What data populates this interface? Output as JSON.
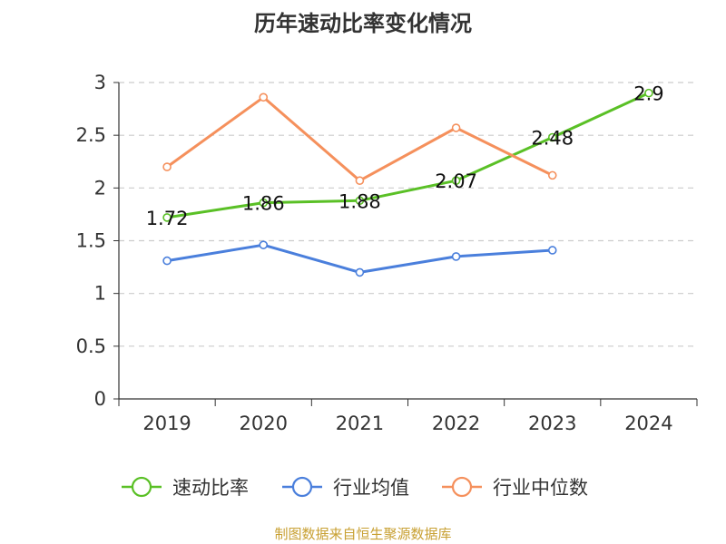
{
  "chart_data": {
    "type": "line",
    "title": "历年速动比率变化情况",
    "categories": [
      "2019",
      "2020",
      "2021",
      "2022",
      "2023",
      "2024"
    ],
    "ylim": [
      0,
      3
    ],
    "yticks": [
      "0",
      "0.5",
      "1",
      "1.5",
      "2",
      "2.5",
      "3"
    ],
    "grid": "horizontal-dashed",
    "legend_position": "bottom",
    "series": [
      {
        "name": "速动比率",
        "color": "#5ac026",
        "values": [
          1.72,
          1.86,
          1.88,
          2.07,
          2.48,
          2.9
        ],
        "labels": [
          "1.72",
          "1.86",
          "1.88",
          "2.07",
          "2.48",
          "2.9"
        ]
      },
      {
        "name": "行业均值",
        "color": "#4a7fdc",
        "values": [
          1.31,
          1.46,
          1.2,
          1.35,
          1.41,
          null
        ]
      },
      {
        "name": "行业中位数",
        "color": "#f5905c",
        "values": [
          2.2,
          2.86,
          2.07,
          2.57,
          2.12,
          null
        ]
      }
    ]
  },
  "footer": {
    "source": "制图数据来自恒生聚源数据库"
  }
}
